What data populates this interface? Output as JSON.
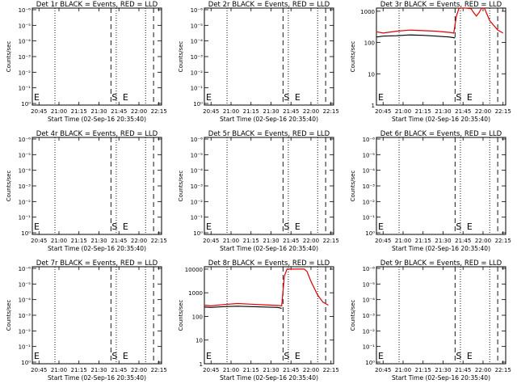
{
  "colors": {
    "events": "#000000",
    "lld": "#e00000",
    "background": "#ffffff"
  },
  "xticks": [
    "20:45",
    "21:00",
    "21:15",
    "21:30",
    "21:45",
    "22:00",
    "22:15"
  ],
  "xlabel": "Start Time (02-Sep-16 20:35:40)",
  "ylabel": "Counts/sec",
  "xrange_minutes_after_2045": [
    -5,
    92
  ],
  "vertical_markers": {
    "dotted_at_minutes": [
      12,
      58,
      80
    ],
    "dashed_at_minutes": [
      54,
      86
    ],
    "S_label": "S",
    "E_label": "E"
  },
  "chart_data": [
    {
      "type": "line",
      "title": "Det 1r BLACK = Events, RED = LLD",
      "scale": "log",
      "yticks": [
        "10⁻⁶",
        "10⁻⁵",
        "10⁻⁴",
        "10⁻³",
        "10⁻²",
        "10⁻¹",
        "10⁰"
      ],
      "series": []
    },
    {
      "type": "line",
      "title": "Det 2r BLACK = Events, RED = LLD",
      "scale": "log",
      "yticks": [
        "10⁻⁶",
        "10⁻⁵",
        "10⁻⁴",
        "10⁻³",
        "10⁻²",
        "10⁻¹",
        "10⁰"
      ],
      "series": []
    },
    {
      "type": "line",
      "title": "Det 3r BLACK = Events, RED = LLD",
      "scale": "log",
      "yticks": [
        "1000",
        "100",
        "10",
        "1"
      ],
      "ylim_log10": [
        0,
        3.1
      ],
      "series": [
        {
          "color": "events",
          "x": [
            -5,
            0,
            10,
            20,
            30,
            40,
            50,
            54
          ],
          "y": [
            150,
            160,
            165,
            175,
            170,
            160,
            150,
            140
          ]
        },
        {
          "color": "lld",
          "x": [
            -5,
            0,
            10,
            20,
            30,
            40,
            50,
            53,
            55,
            57,
            59,
            62,
            66,
            68,
            70,
            72,
            74,
            76,
            80,
            86,
            90
          ],
          "y": [
            220,
            200,
            230,
            250,
            240,
            230,
            210,
            200,
            700,
            1300,
            1400,
            1400,
            1200,
            900,
            700,
            900,
            2000,
            2000,
            500,
            250,
            200
          ]
        }
      ]
    },
    {
      "type": "line",
      "title": "Det 4r BLACK = Events, RED = LLD",
      "scale": "log",
      "yticks": [
        "10⁻⁶",
        "10⁻⁵",
        "10⁻⁴",
        "10⁻³",
        "10⁻²",
        "10⁻¹",
        "10⁰"
      ],
      "series": []
    },
    {
      "type": "line",
      "title": "Det 5r BLACK = Events, RED = LLD",
      "scale": "log",
      "yticks": [
        "10⁻⁶",
        "10⁻⁵",
        "10⁻⁴",
        "10⁻³",
        "10⁻²",
        "10⁻¹",
        "10⁰"
      ],
      "series": []
    },
    {
      "type": "line",
      "title": "Det 6r BLACK = Events, RED = LLD",
      "scale": "log",
      "yticks": [
        "10⁻⁶",
        "10⁻⁵",
        "10⁻⁴",
        "10⁻³",
        "10⁻²",
        "10⁻¹",
        "10⁰"
      ],
      "series": []
    },
    {
      "type": "line",
      "title": "Det 7r BLACK = Events, RED = LLD",
      "scale": "log",
      "yticks": [
        "10⁻⁶",
        "10⁻⁵",
        "10⁻⁴",
        "10⁻³",
        "10⁻²",
        "10⁻¹",
        "10⁰"
      ],
      "series": []
    },
    {
      "type": "line",
      "title": "Det 8r BLACK = Events, RED = LLD",
      "scale": "log",
      "yticks": [
        "10000",
        "1000",
        "100",
        "10",
        "1"
      ],
      "ylim_log10": [
        0,
        4.1
      ],
      "series": [
        {
          "color": "events",
          "x": [
            -5,
            0,
            10,
            20,
            30,
            40,
            50,
            53
          ],
          "y": [
            250,
            240,
            260,
            270,
            260,
            250,
            240,
            220
          ]
        },
        {
          "color": "lld",
          "x": [
            -5,
            0,
            10,
            20,
            30,
            40,
            50,
            53,
            55,
            57,
            60,
            65,
            70,
            72,
            75,
            80,
            84,
            88
          ],
          "y": [
            300,
            280,
            320,
            350,
            330,
            310,
            290,
            280,
            5000,
            10000,
            10000,
            10000,
            10000,
            8000,
            3000,
            800,
            400,
            300
          ]
        }
      ]
    },
    {
      "type": "line",
      "title": "Det 9r BLACK = Events, RED = LLD",
      "scale": "log",
      "yticks": [
        "10⁻⁶",
        "10⁻⁵",
        "10⁻⁴",
        "10⁻³",
        "10⁻²",
        "10⁻¹",
        "10⁰"
      ],
      "series": []
    }
  ]
}
